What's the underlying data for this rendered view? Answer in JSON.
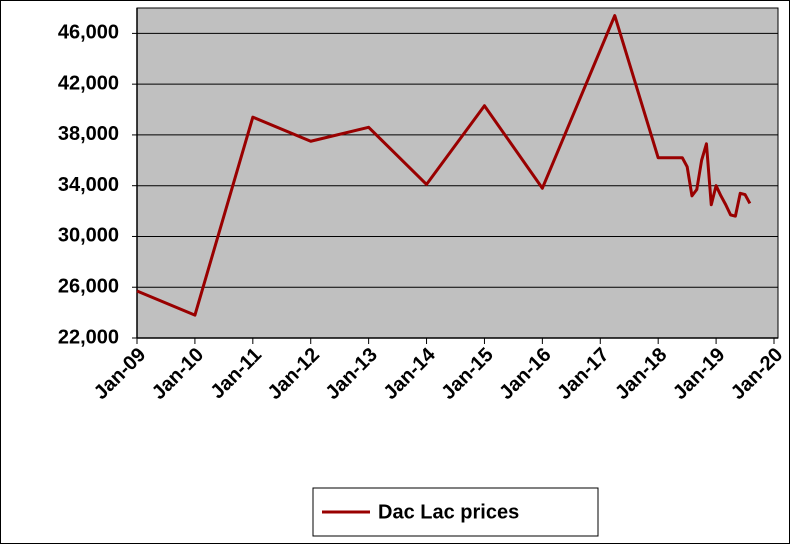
{
  "chart_data": {
    "type": "line",
    "x": [
      "2009-01",
      "2010-01",
      "2011-01",
      "2012-01",
      "2013-01",
      "2014-01",
      "2015-01",
      "2016-01",
      "2017-04",
      "2018-01",
      "2018-06",
      "2018-07",
      "2018-08",
      "2018-09",
      "2018-10",
      "2018-11",
      "2018-12",
      "2019-01",
      "2019-02",
      "2019-03",
      "2019-04",
      "2019-05",
      "2019-06",
      "2019-07",
      "2019-08"
    ],
    "series": [
      {
        "name": "Dac Lac prices",
        "color": "#990000",
        "values": [
          25700,
          23800,
          39400,
          37500,
          38600,
          34100,
          40300,
          33800,
          47400,
          36200,
          36200,
          35500,
          33200,
          33700,
          36000,
          37300,
          32500,
          34000,
          33200,
          32500,
          31700,
          31600,
          33400,
          33300,
          32600
        ]
      }
    ],
    "xlim": [
      "2009-01",
      "2020-01"
    ],
    "xticks": [
      {
        "value": "2009-01",
        "label": "Jan-09"
      },
      {
        "value": "2010-01",
        "label": "Jan-10"
      },
      {
        "value": "2011-01",
        "label": "Jan-11"
      },
      {
        "value": "2012-01",
        "label": "Jan-12"
      },
      {
        "value": "2013-01",
        "label": "Jan-13"
      },
      {
        "value": "2014-01",
        "label": "Jan-14"
      },
      {
        "value": "2015-01",
        "label": "Jan-15"
      },
      {
        "value": "2016-01",
        "label": "Jan-16"
      },
      {
        "value": "2017-01",
        "label": "Jan-17"
      },
      {
        "value": "2018-01",
        "label": "Jan-18"
      },
      {
        "value": "2019-01",
        "label": "Jan-19"
      },
      {
        "value": "2020-01",
        "label": "Jan-20"
      }
    ],
    "ylim": [
      22000,
      48000
    ],
    "yticks": [
      {
        "value": 22000,
        "label": "22,000"
      },
      {
        "value": 26000,
        "label": "26,000"
      },
      {
        "value": 30000,
        "label": "30,000"
      },
      {
        "value": 34000,
        "label": "34,000"
      },
      {
        "value": 38000,
        "label": "38,000"
      },
      {
        "value": 42000,
        "label": "42,000"
      },
      {
        "value": 46000,
        "label": "46,000"
      }
    ],
    "grid": true,
    "plot_background": "#c0c0c0",
    "legend": "bottom"
  }
}
